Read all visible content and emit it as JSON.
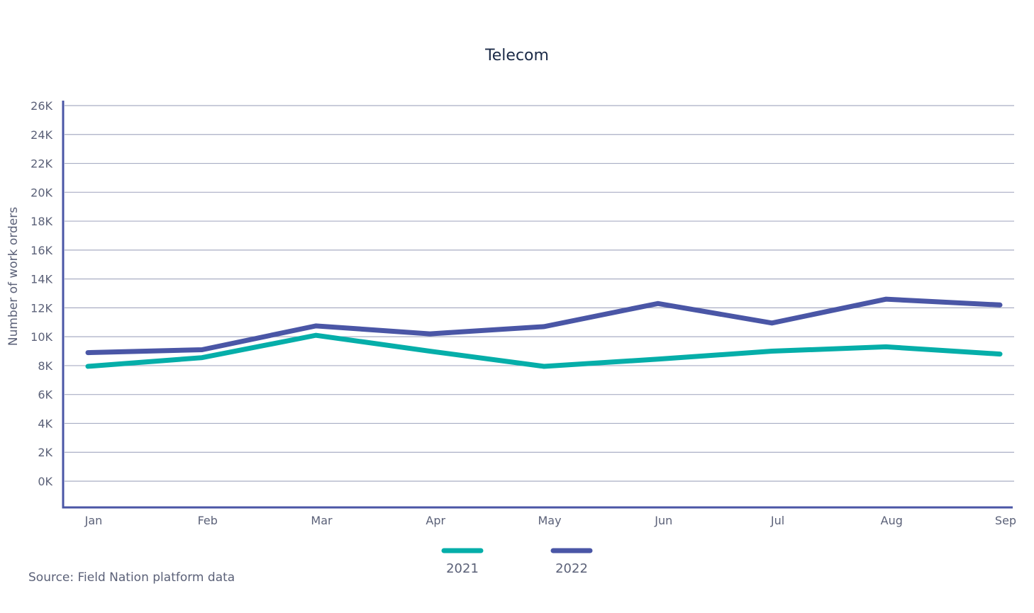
{
  "chart_data": {
    "type": "line",
    "title": "Telecom",
    "xlabel": "",
    "ylabel": "Number of work orders",
    "categories": [
      "Jan",
      "Feb",
      "Mar",
      "Apr",
      "May",
      "Jun",
      "Jul",
      "Aug",
      "Sep"
    ],
    "yticks": [
      0,
      2000,
      4000,
      6000,
      8000,
      10000,
      12000,
      14000,
      16000,
      18000,
      20000,
      22000,
      24000,
      26000
    ],
    "ytick_labels": [
      "0K",
      "2K",
      "4K",
      "6K",
      "8K",
      "10K",
      "12K",
      "14K",
      "16K",
      "18K",
      "20K",
      "22K",
      "24K",
      "26K"
    ],
    "ylim": [
      0,
      26000
    ],
    "grid": true,
    "legend_position": "bottom-center",
    "series": [
      {
        "name": "2021",
        "color": "#05aea9",
        "values": [
          7950,
          8550,
          10100,
          9000,
          7950,
          8450,
          9000,
          9300,
          8800
        ]
      },
      {
        "name": "2022",
        "color": "#4a56a6",
        "values": [
          8900,
          9100,
          10750,
          10200,
          10700,
          12300,
          10950,
          12600,
          12200
        ]
      }
    ],
    "source": "Source: Field Nation platform data"
  },
  "colors": {
    "axis": "#4a56a6",
    "grid": "#a9aec4",
    "text": "#5b6178",
    "title": "#1b2a47"
  }
}
